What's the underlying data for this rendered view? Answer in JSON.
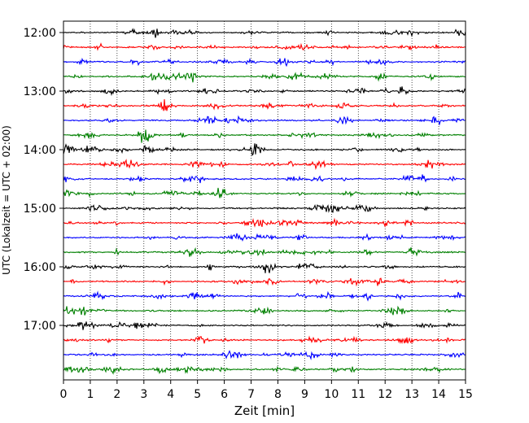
{
  "chart_data": {
    "type": "line",
    "title": "",
    "xlabel": "Zeit  [min]",
    "ylabel": "UTC (Lokalzeit = UTC + 02:00)",
    "xlim": [
      0,
      15
    ],
    "x_ticks": [
      "0",
      "1",
      "2",
      "3",
      "4",
      "5",
      "6",
      "7",
      "8",
      "9",
      "10",
      "11",
      "12",
      "13",
      "14",
      "15"
    ],
    "y_ticks": [
      "12:00",
      "13:00",
      "14:00",
      "15:00",
      "16:00",
      "17:00"
    ],
    "grid": "vertical dotted",
    "trace_interval_min": 15,
    "start_time": "12:00",
    "trace_count": 24,
    "trace_colors": [
      "#000000",
      "#ff0000",
      "#0000ff",
      "#008000"
    ]
  }
}
